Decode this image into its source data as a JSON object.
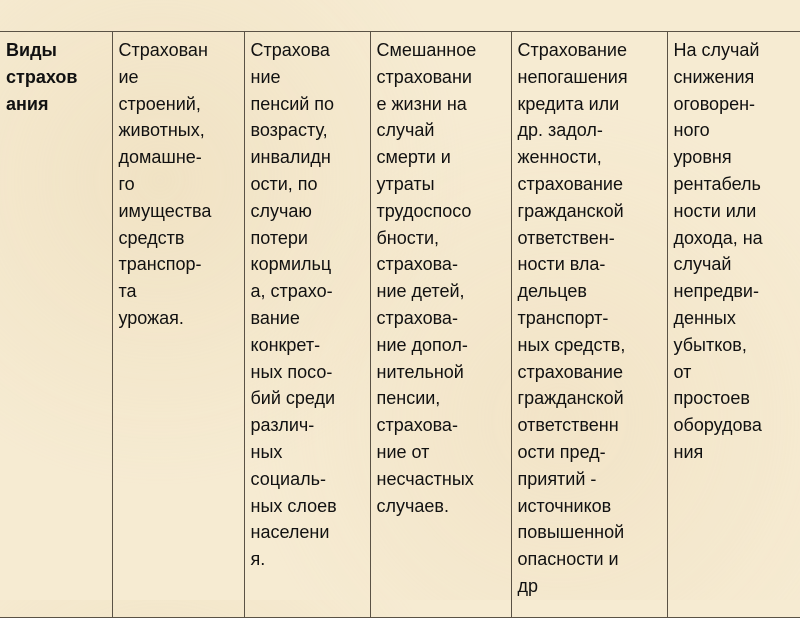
{
  "table": {
    "columns": [
      "Виды\nстрахов\nания",
      "Страхован\nие\nстроений,\nживотных,\nдомашне-\nго\nимущества\nсредств\nтранспор-\nта\n урожая.",
      "Страхова\nние\nпенсий по\nвозрасту,\nинвалидн\nости, по\nслучаю\nпотери\nкормильц\nа, страхо-\nвание\nконкрет-\nных посо-\nбий среди\nразлич-\nных\nсоциаль-\nных слоев\nнаселени\nя.",
      "Смешанное\nстраховани\nе жизни на\nслучай\nсмерти и\nутраты\nтрудоспосо\nбности,\nстрахова-\nние детей,\nстрахова-\nние допол-\nнительной\nпенсии,\nстрахова-\nние от\nнесчастных\nслучаев.",
      "Страхование\nнепогашения\nкредита или\nдр. задол-\nженности,\nстрахование\nгражданской\nответствен-\nности вла-\nдельцев\nтранспорт-\nных средств,\nстрахование\nгражданской\nответственн\nости пред-\nприятий -\nисточников\nповышенной\nопасности и\nдр",
      "На случай\nснижения\nоговорен-\nного\nуровня\nрентабель\nности или\nдохода, на\nслучай\nнепредви-\nденных\nубытков,\nот\nпростоев\nоборудова\nния"
    ]
  }
}
